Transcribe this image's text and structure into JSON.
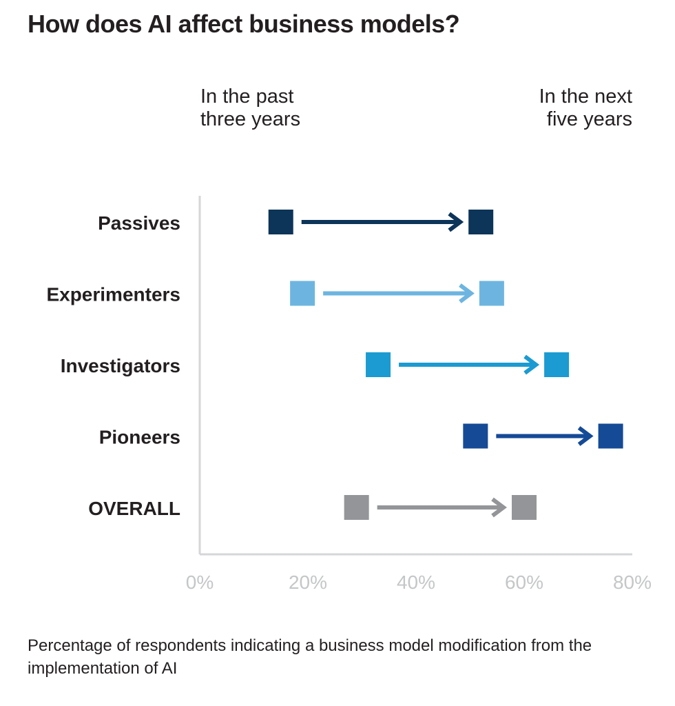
{
  "title": "How does AI affect business models?",
  "column_labels": {
    "left": "In the past\nthree years",
    "right": "In the next\nfive years"
  },
  "footnote": "Percentage of respondents indicating a business model modification from the implementation of AI",
  "chart_data": {
    "type": "dumbbell",
    "title": "How does AI affect business models?",
    "xlabel": "",
    "ylabel": "",
    "xlim": [
      0,
      80
    ],
    "x_ticks": [
      "0%",
      "20%",
      "40%",
      "60%",
      "80%"
    ],
    "x_tick_values": [
      0,
      20,
      40,
      60,
      80
    ],
    "grid": false,
    "series_labels": [
      "In the past three years",
      "In the next five years"
    ],
    "categories": [
      "Passives",
      "Experimenters",
      "Investigators",
      "Pioneers",
      "OVERALL"
    ],
    "past_three_years": [
      15,
      19,
      33,
      51,
      29
    ],
    "next_five_years": [
      52,
      54,
      66,
      76,
      60
    ],
    "colors": [
      "#0d3459",
      "#6db5e0",
      "#1b9bd1",
      "#154a96",
      "#939598"
    ],
    "axis_color": "#d4d6d8"
  }
}
